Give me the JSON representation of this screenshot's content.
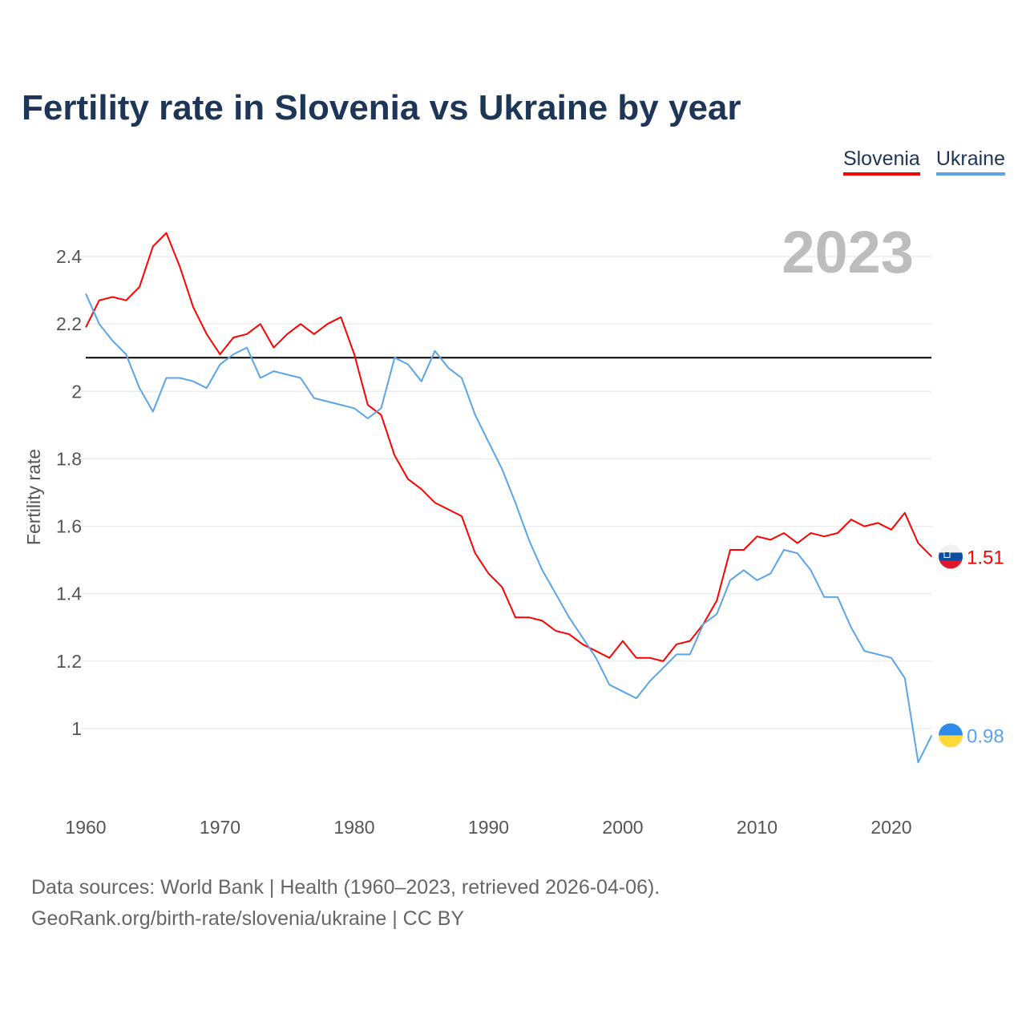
{
  "chart_data": {
    "type": "line",
    "title": "Fertility rate in Slovenia vs Ukraine by year",
    "xlabel": "",
    "ylabel": "Fertility rate",
    "year_label": "2023",
    "xlim": [
      1960,
      2023
    ],
    "ylim": [
      0.8,
      2.55
    ],
    "xticks": [
      "1960",
      "1970",
      "1980",
      "1990",
      "2000",
      "2010",
      "2020"
    ],
    "yticks": [
      "1",
      "1.2",
      "1.4",
      "1.6",
      "1.8",
      "2",
      "2.2",
      "2.4"
    ],
    "reference_line": 2.1,
    "grid": true,
    "legend_position": "top-right",
    "x_start": 1960,
    "series": [
      {
        "name": "Slovenia",
        "color": "#ff0000",
        "end_label": "1.51",
        "values": [
          2.19,
          2.27,
          2.28,
          2.27,
          2.31,
          2.43,
          2.47,
          2.37,
          2.25,
          2.17,
          2.11,
          2.16,
          2.17,
          2.2,
          2.13,
          2.17,
          2.2,
          2.17,
          2.2,
          2.22,
          2.11,
          1.96,
          1.93,
          1.81,
          1.74,
          1.71,
          1.67,
          1.65,
          1.63,
          1.52,
          1.46,
          1.42,
          1.33,
          1.33,
          1.32,
          1.29,
          1.28,
          1.25,
          1.23,
          1.21,
          1.26,
          1.21,
          1.21,
          1.2,
          1.25,
          1.26,
          1.31,
          1.38,
          1.53,
          1.53,
          1.57,
          1.56,
          1.58,
          1.55,
          1.58,
          1.57,
          1.58,
          1.62,
          1.6,
          1.61,
          1.59,
          1.64,
          1.55,
          1.51
        ]
      },
      {
        "name": "Ukraine",
        "color": "#5ba4e8",
        "end_label": "0.98",
        "values": [
          2.29,
          2.2,
          2.15,
          2.11,
          2.01,
          1.94,
          2.04,
          2.04,
          2.03,
          2.01,
          2.08,
          2.11,
          2.13,
          2.04,
          2.06,
          2.05,
          2.04,
          1.98,
          1.97,
          1.96,
          1.95,
          1.92,
          1.95,
          2.1,
          2.08,
          2.03,
          2.12,
          2.07,
          2.04,
          1.93,
          1.85,
          1.77,
          1.67,
          1.56,
          1.47,
          1.4,
          1.33,
          1.27,
          1.21,
          1.13,
          1.11,
          1.09,
          1.14,
          1.18,
          1.22,
          1.22,
          1.31,
          1.34,
          1.44,
          1.47,
          1.44,
          1.46,
          1.53,
          1.52,
          1.47,
          1.39,
          1.39,
          1.3,
          1.23,
          1.22,
          1.21,
          1.15,
          0.9,
          0.98
        ]
      }
    ]
  },
  "footer": {
    "line1": "Data sources: World Bank | Health (1960–2023, retrieved 2026-04-06).",
    "line2": "GeoRank.org/birth-rate/slovenia/ukraine | CC BY"
  }
}
